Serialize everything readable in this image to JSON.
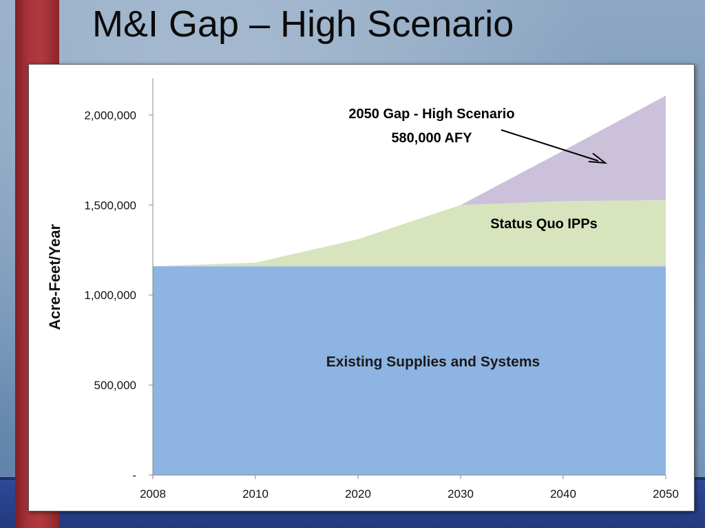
{
  "slide": {
    "title": "M&I Gap – High Scenario"
  },
  "chart_data": {
    "type": "area",
    "stacked": true,
    "title": "",
    "xlabel": "",
    "ylabel": "Acre-Feet/Year",
    "ylim": [
      0,
      2200000
    ],
    "yticks": [
      0,
      500000,
      1000000,
      1500000,
      2000000
    ],
    "ytick_labels": [
      "-",
      "500,000",
      "1,000,000",
      "1,500,000",
      "2,000,000"
    ],
    "categories": [
      "2008",
      "2010",
      "2020",
      "2030",
      "2040",
      "2050"
    ],
    "series": [
      {
        "name": "Existing Supplies and Systems",
        "color": "#8eb4e3",
        "values": [
          1160000,
          1160000,
          1160000,
          1160000,
          1160000,
          1160000
        ]
      },
      {
        "name": "Status Quo IPPs",
        "color": "#d7e4bd",
        "values": [
          0,
          20000,
          150000,
          340000,
          362000,
          368000
        ]
      },
      {
        "name": "2050 Gap - High Scenario",
        "color": "#ccc1da",
        "values": [
          0,
          0,
          0,
          0,
          280000,
          580000
        ]
      }
    ],
    "annotations": {
      "gap_line1": "2050 Gap - High Scenario",
      "gap_line2": "580,000 AFY",
      "ipp_label": "Status Quo IPPs",
      "existing_label": "Existing Supplies and Systems"
    },
    "grid": false,
    "legend": "none"
  }
}
